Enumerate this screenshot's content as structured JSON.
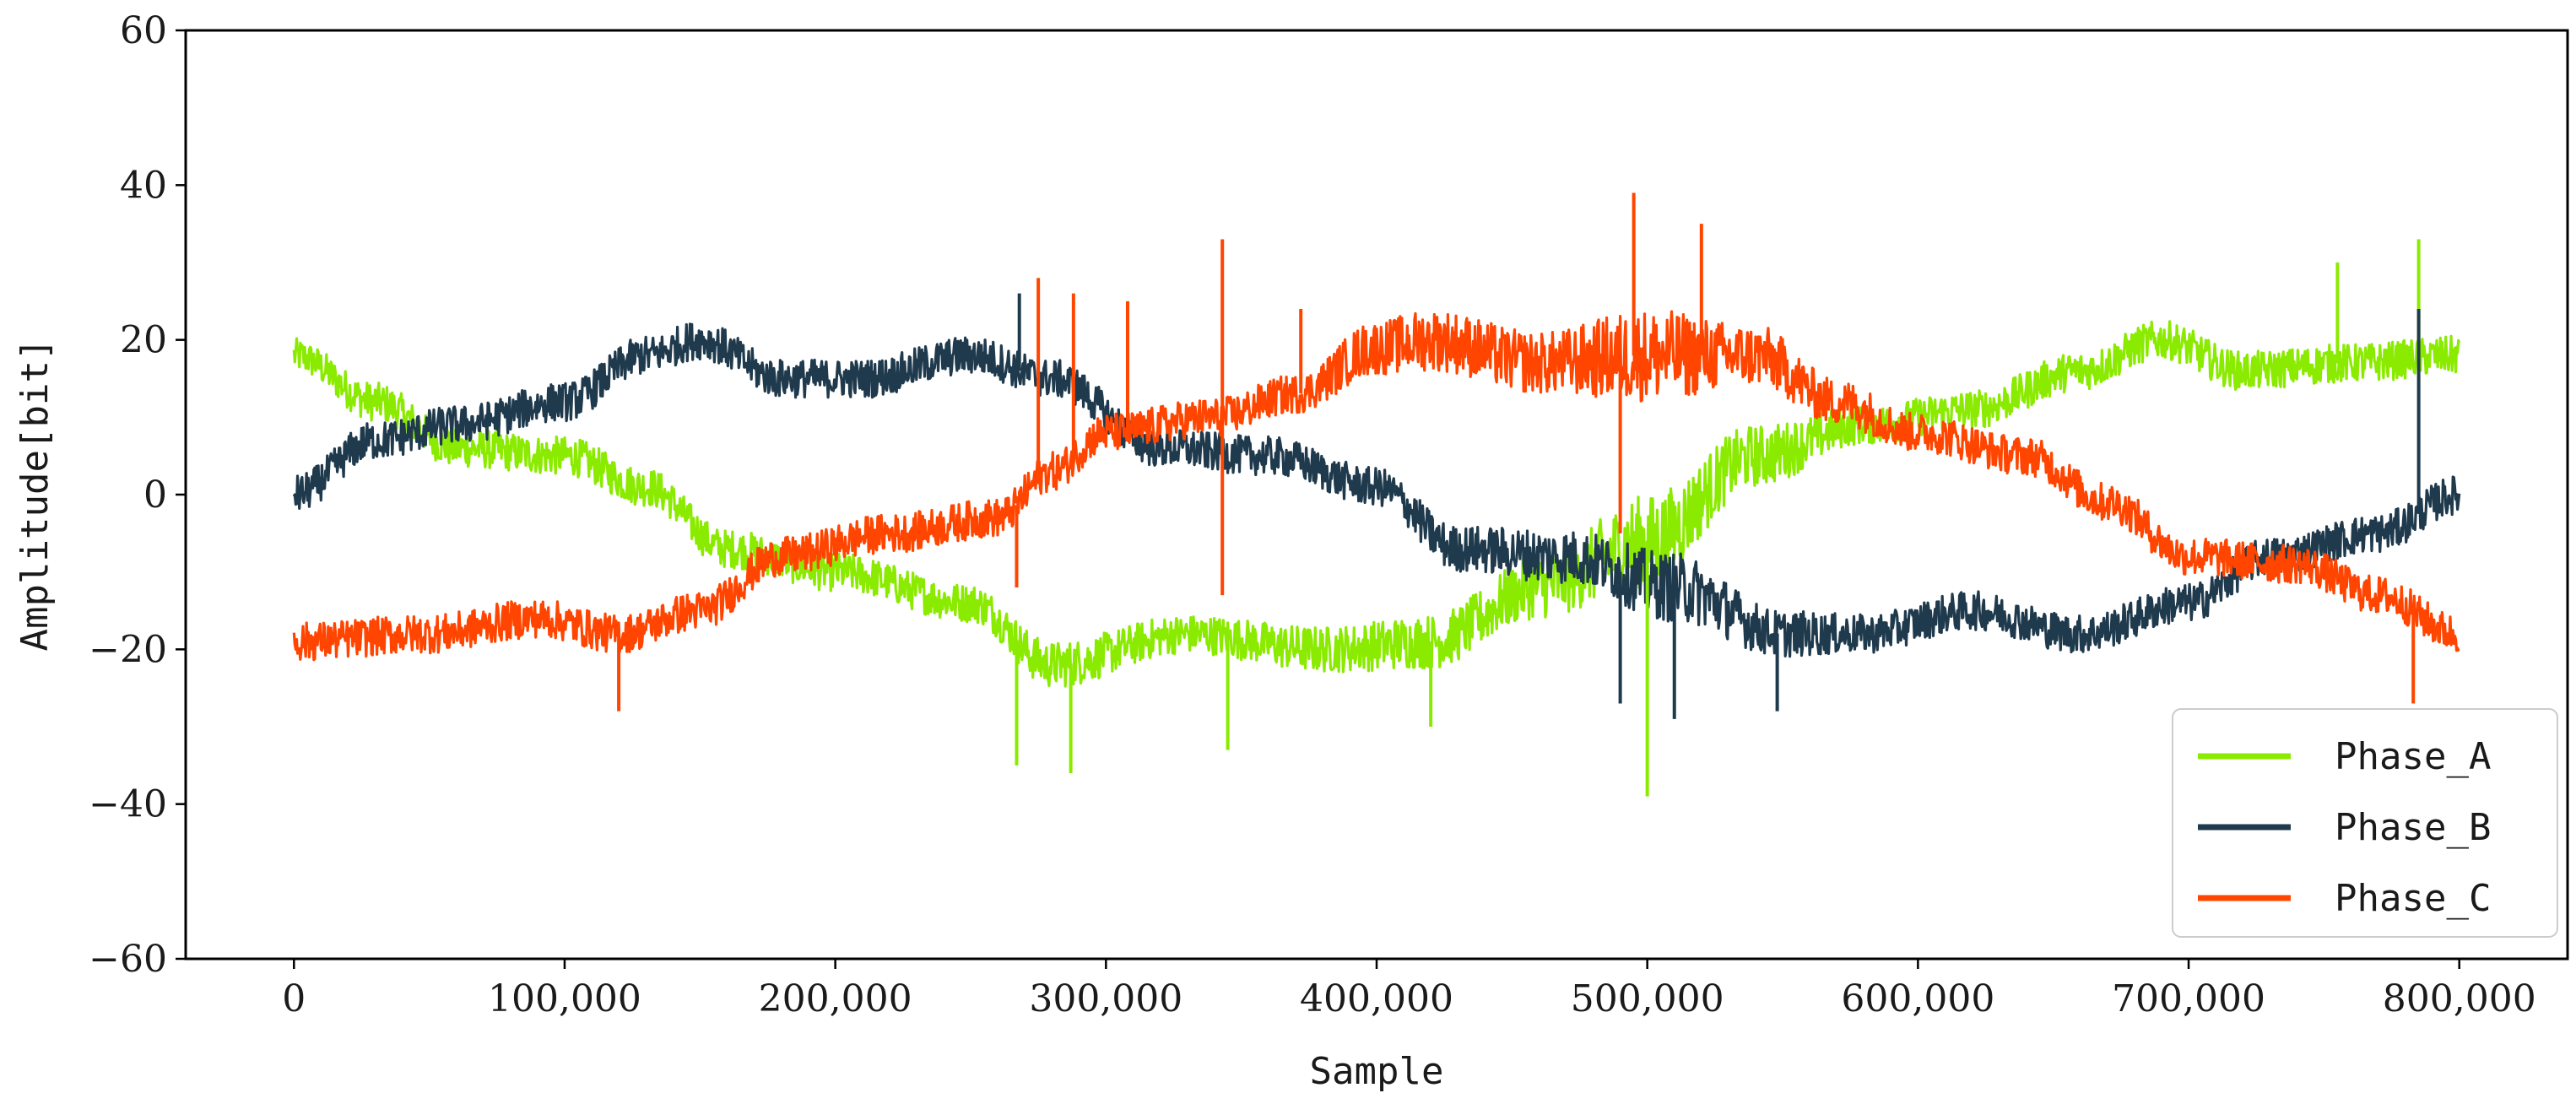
{
  "chart_data": {
    "type": "line",
    "title": "",
    "xlabel": "Sample",
    "ylabel": "Amplitude[bit]",
    "xlim": [
      -40000,
      840000
    ],
    "ylim": [
      -60,
      60
    ],
    "xticks": [
      0,
      100000,
      200000,
      300000,
      400000,
      500000,
      600000,
      700000,
      800000
    ],
    "xtick_labels": [
      "0",
      "100,000",
      "200,000",
      "300,000",
      "400,000",
      "500,000",
      "600,000",
      "700,000",
      "800,000"
    ],
    "yticks": [
      -60,
      -40,
      -20,
      0,
      20,
      40,
      60
    ],
    "ytick_labels": [
      "−60",
      "−40",
      "−20",
      "0",
      "20",
      "40",
      "60"
    ],
    "grid": false,
    "legend_position": "bottom-right",
    "series": [
      {
        "name": "Phase_A",
        "color": "#8aeb00",
        "x": [
          0,
          30000,
          60000,
          100000,
          130000,
          160000,
          200000,
          250000,
          280000,
          330000,
          380000,
          420000,
          460000,
          500000,
          540000,
          580000,
          620000,
          660000,
          690000,
          720000,
          760000,
          800000
        ],
        "y": [
          18,
          12,
          6,
          5,
          1,
          -7,
          -10,
          -14,
          -22,
          -18,
          -20,
          -19,
          -12,
          -6,
          5,
          9,
          11,
          16,
          20,
          16,
          17,
          18
        ],
        "noise": [
          2.2,
          2.5,
          2.5,
          2.5,
          2.5,
          2.5,
          2.5,
          2.5,
          3,
          2.5,
          3,
          3.5,
          4,
          6,
          4,
          2.5,
          2.5,
          2.5,
          2.5,
          2.5,
          2.5,
          2.5
        ]
      },
      {
        "name": "Phase_B",
        "color": "#1f3a4d",
        "x": [
          0,
          30000,
          60000,
          100000,
          130000,
          150000,
          180000,
          210000,
          250000,
          280000,
          320000,
          360000,
          400000,
          430000,
          470000,
          510000,
          550000,
          580000,
          620000,
          660000,
          700000,
          730000,
          770000,
          800000
        ],
        "y": [
          0,
          7,
          9,
          12,
          18,
          20,
          15,
          15,
          18,
          15,
          6,
          5,
          1,
          -7,
          -8,
          -12,
          -18,
          -18,
          -15,
          -18,
          -14,
          -8,
          -5,
          0
        ],
        "noise": [
          2.5,
          2.5,
          2.5,
          2.5,
          2.5,
          2.5,
          2.5,
          2.5,
          2.5,
          2.5,
          2.5,
          2.5,
          2.5,
          3,
          3.5,
          4.5,
          3,
          2.5,
          2.5,
          2.5,
          2.5,
          2.5,
          2.5,
          2.5
        ]
      },
      {
        "name": "Phase_C",
        "color": "#ff4500",
        "x": [
          0,
          50000,
          90000,
          120000,
          150000,
          180000,
          220000,
          260000,
          280000,
          300000,
          340000,
          370000,
          400000,
          420000,
          460000,
          500000,
          540000,
          570000,
          600000,
          640000,
          670000,
          700000,
          740000,
          770000,
          800000
        ],
        "y": [
          -19,
          -18,
          -16,
          -18,
          -15,
          -8,
          -5,
          -3,
          3,
          8,
          10,
          13,
          19,
          20,
          17,
          18,
          18,
          12,
          8,
          5,
          -1,
          -8,
          -9,
          -13,
          -18
        ],
        "noise": [
          2.5,
          2.5,
          2.5,
          2.5,
          2.5,
          2.5,
          2.5,
          2.5,
          2.5,
          2.5,
          2.5,
          2.5,
          3.5,
          4,
          4,
          6,
          4,
          3,
          2.5,
          2.5,
          2.5,
          2.5,
          2.5,
          2.5,
          2.5
        ]
      }
    ],
    "spikes": [
      {
        "series": "Phase_A",
        "x": 267000,
        "y": -35
      },
      {
        "series": "Phase_A",
        "x": 287000,
        "y": -36
      },
      {
        "series": "Phase_A",
        "x": 345000,
        "y": -33
      },
      {
        "series": "Phase_A",
        "x": 420000,
        "y": -30
      },
      {
        "series": "Phase_A",
        "x": 500000,
        "y": -39
      },
      {
        "series": "Phase_A",
        "x": 755000,
        "y": 30
      },
      {
        "series": "Phase_A",
        "x": 785000,
        "y": 33
      },
      {
        "series": "Phase_B",
        "x": 268000,
        "y": 26
      },
      {
        "series": "Phase_B",
        "x": 490000,
        "y": -27
      },
      {
        "series": "Phase_B",
        "x": 510000,
        "y": -29
      },
      {
        "series": "Phase_B",
        "x": 548000,
        "y": -28
      },
      {
        "series": "Phase_B",
        "x": 785000,
        "y": 24
      },
      {
        "series": "Phase_C",
        "x": 120000,
        "y": -28
      },
      {
        "series": "Phase_C",
        "x": 267000,
        "y": -12
      },
      {
        "series": "Phase_C",
        "x": 275000,
        "y": 28
      },
      {
        "series": "Phase_C",
        "x": 288000,
        "y": 26
      },
      {
        "series": "Phase_C",
        "x": 308000,
        "y": 25
      },
      {
        "series": "Phase_C",
        "x": 343000,
        "y": 33
      },
      {
        "series": "Phase_C",
        "x": 343000,
        "y": -13
      },
      {
        "series": "Phase_C",
        "x": 372000,
        "y": 24
      },
      {
        "series": "Phase_C",
        "x": 495000,
        "y": 39
      },
      {
        "series": "Phase_C",
        "x": 490000,
        "y": -5
      },
      {
        "series": "Phase_C",
        "x": 520000,
        "y": 35
      },
      {
        "series": "Phase_C",
        "x": 783000,
        "y": -27
      }
    ]
  }
}
